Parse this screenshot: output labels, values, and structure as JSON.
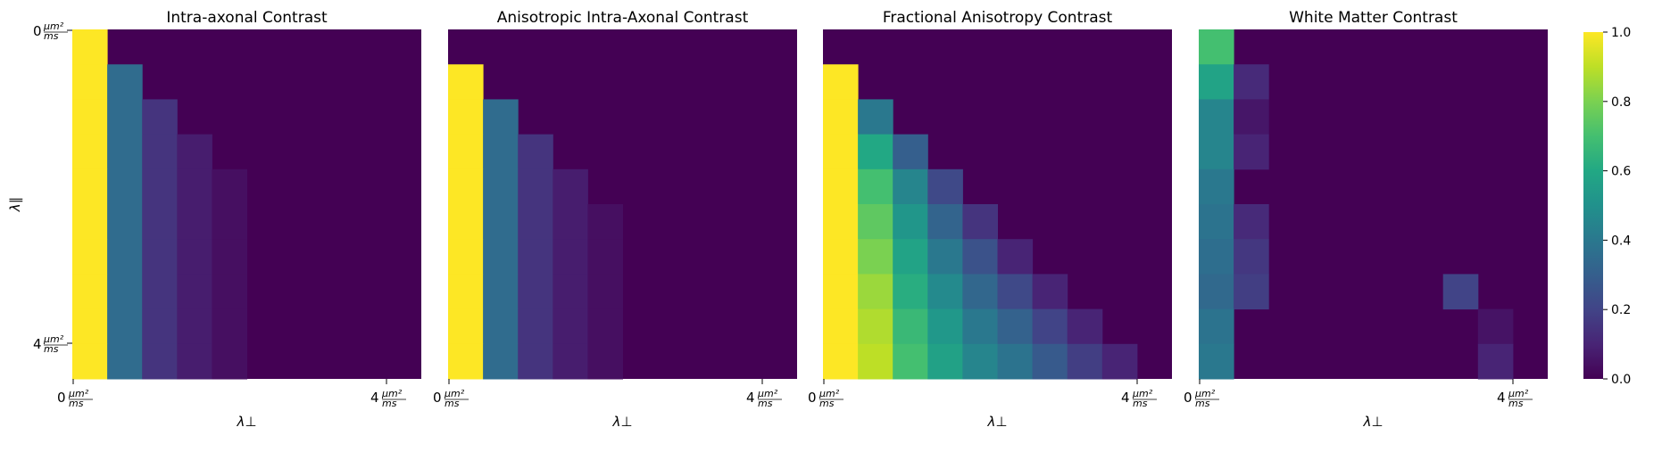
{
  "chart_data": {
    "type": "heatmap",
    "colormap": "viridis",
    "panels": [
      {
        "title": "Intra-axonal Contrast",
        "rows": 10,
        "cols": 10,
        "values": [
          [
            1.0,
            0,
            0,
            0,
            0,
            0,
            0,
            0,
            0,
            0
          ],
          [
            1.0,
            0.35,
            0,
            0,
            0,
            0,
            0,
            0,
            0,
            0
          ],
          [
            1.0,
            0.35,
            0.15,
            0,
            0,
            0,
            0,
            0,
            0,
            0
          ],
          [
            1.0,
            0.35,
            0.15,
            0.08,
            0,
            0,
            0,
            0,
            0,
            0
          ],
          [
            1.0,
            0.35,
            0.15,
            0.08,
            0.04,
            0,
            0,
            0,
            0,
            0
          ],
          [
            1.0,
            0.35,
            0.15,
            0.08,
            0.04,
            0,
            0,
            0,
            0,
            0
          ],
          [
            1.0,
            0.35,
            0.15,
            0.08,
            0.04,
            0,
            0,
            0,
            0,
            0
          ],
          [
            1.0,
            0.35,
            0.15,
            0.08,
            0.04,
            0,
            0,
            0,
            0,
            0
          ],
          [
            1.0,
            0.35,
            0.15,
            0.08,
            0.04,
            0,
            0,
            0,
            0,
            0
          ],
          [
            1.0,
            0.35,
            0.15,
            0.08,
            0.04,
            0,
            0,
            0,
            0,
            0
          ]
        ],
        "show_ylabel": true
      },
      {
        "title": "Anisotropic Intra-Axonal Contrast",
        "rows": 10,
        "cols": 10,
        "values": [
          [
            0,
            0,
            0,
            0,
            0,
            0,
            0,
            0,
            0,
            0
          ],
          [
            1.0,
            0,
            0,
            0,
            0,
            0,
            0,
            0,
            0,
            0
          ],
          [
            1.0,
            0.35,
            0,
            0,
            0,
            0,
            0,
            0,
            0,
            0
          ],
          [
            1.0,
            0.35,
            0.15,
            0,
            0,
            0,
            0,
            0,
            0,
            0
          ],
          [
            1.0,
            0.35,
            0.15,
            0.08,
            0,
            0,
            0,
            0,
            0,
            0
          ],
          [
            1.0,
            0.35,
            0.15,
            0.08,
            0.04,
            0,
            0,
            0,
            0,
            0
          ],
          [
            1.0,
            0.35,
            0.15,
            0.08,
            0.04,
            0,
            0,
            0,
            0,
            0
          ],
          [
            1.0,
            0.35,
            0.15,
            0.08,
            0.04,
            0,
            0,
            0,
            0,
            0
          ],
          [
            1.0,
            0.35,
            0.15,
            0.08,
            0.04,
            0,
            0,
            0,
            0,
            0
          ],
          [
            1.0,
            0.35,
            0.15,
            0.08,
            0.04,
            0,
            0,
            0,
            0,
            0
          ]
        ],
        "show_ylabel": false
      },
      {
        "title": "Fractional Anisotropy Contrast",
        "rows": 10,
        "cols": 10,
        "values": [
          [
            0,
            0,
            0,
            0,
            0,
            0,
            0,
            0,
            0,
            0
          ],
          [
            1.0,
            0,
            0,
            0,
            0,
            0,
            0,
            0,
            0,
            0
          ],
          [
            1.0,
            0.4,
            0,
            0,
            0,
            0,
            0,
            0,
            0,
            0
          ],
          [
            1.0,
            0.6,
            0.3,
            0,
            0,
            0,
            0,
            0,
            0,
            0
          ],
          [
            1.0,
            0.7,
            0.45,
            0.22,
            0,
            0,
            0,
            0,
            0,
            0
          ],
          [
            1.0,
            0.75,
            0.52,
            0.32,
            0.15,
            0,
            0,
            0,
            0,
            0
          ],
          [
            1.0,
            0.8,
            0.58,
            0.4,
            0.25,
            0.1,
            0,
            0,
            0,
            0
          ],
          [
            1.0,
            0.85,
            0.62,
            0.47,
            0.33,
            0.22,
            0.1,
            0,
            0,
            0
          ],
          [
            1.0,
            0.88,
            0.67,
            0.53,
            0.4,
            0.31,
            0.2,
            0.1,
            0,
            0
          ],
          [
            1.0,
            0.9,
            0.7,
            0.57,
            0.45,
            0.38,
            0.28,
            0.18,
            0.1,
            0
          ]
        ],
        "show_ylabel": false
      },
      {
        "title": "White Matter Contrast",
        "rows": 10,
        "cols": 10,
        "values": [
          [
            0.7,
            0,
            0,
            0,
            0,
            0,
            0,
            0,
            0,
            0
          ],
          [
            0.58,
            0.12,
            0,
            0,
            0,
            0,
            0,
            0,
            0,
            0
          ],
          [
            0.45,
            0.06,
            0,
            0,
            0,
            0,
            0,
            0,
            0,
            0
          ],
          [
            0.45,
            0.1,
            0,
            0,
            0,
            0,
            0,
            0,
            0,
            0
          ],
          [
            0.4,
            0,
            0,
            0,
            0,
            0,
            0,
            0,
            0,
            0
          ],
          [
            0.38,
            0.12,
            0,
            0,
            0,
            0,
            0,
            0,
            0,
            0
          ],
          [
            0.36,
            0.16,
            0,
            0,
            0,
            0,
            0,
            0,
            0,
            0
          ],
          [
            0.34,
            0.18,
            0,
            0,
            0,
            0,
            0,
            0.2,
            0,
            0
          ],
          [
            0.38,
            0,
            0,
            0,
            0,
            0,
            0,
            0,
            0.05,
            0
          ],
          [
            0.4,
            0,
            0,
            0,
            0,
            0,
            0,
            0,
            0.1,
            0
          ]
        ],
        "show_ylabel": false
      }
    ],
    "xlabel": "λ⊥",
    "ylabel": "λ∥",
    "tick_values": [
      "0",
      "4"
    ],
    "tick_unit": "μm²/ms",
    "colorbar": {
      "min": 0.0,
      "max": 1.0,
      "ticks": [
        "0.0",
        "0.2",
        "0.4",
        "0.6",
        "0.8",
        "1.0"
      ]
    }
  }
}
